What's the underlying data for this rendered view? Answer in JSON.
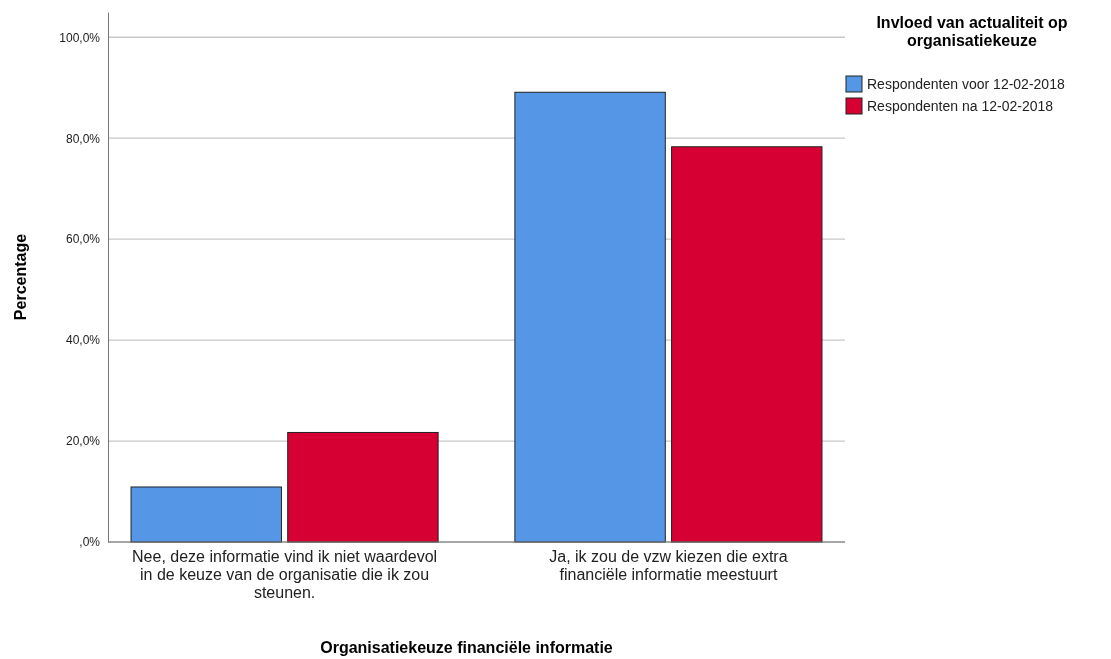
{
  "chart_data": {
    "type": "bar",
    "xlabel": "Organisatiekeuze financiële informatie",
    "ylabel": "Percentage",
    "legend_title": "Invloed van actualiteit op organisatiekeuze",
    "categories": [
      "Nee, deze informatie vind ik niet waardevol in de keuze van de organisatie die ik zou steunen.",
      "Ja, ik zou de vzw kiezen die extra financiële informatie meestuurt"
    ],
    "series": [
      {
        "name": "Respondenten voor 12-02-2018",
        "color": "#5596e6",
        "values": [
          10.9,
          89.1
        ]
      },
      {
        "name": "Respondenten na 12-02-2018",
        "color": "#d60032",
        "values": [
          21.7,
          78.3
        ]
      }
    ],
    "ylim": [
      0,
      105
    ],
    "yticks": [
      {
        "value": 0,
        "label": ",0%"
      },
      {
        "value": 20,
        "label": "20,0%"
      },
      {
        "value": 40,
        "label": "40,0%"
      },
      {
        "value": 60,
        "label": "60,0%"
      },
      {
        "value": 80,
        "label": "80,0%"
      },
      {
        "value": 100,
        "label": "100,0%"
      }
    ],
    "grid": "y",
    "legend": "top right"
  }
}
